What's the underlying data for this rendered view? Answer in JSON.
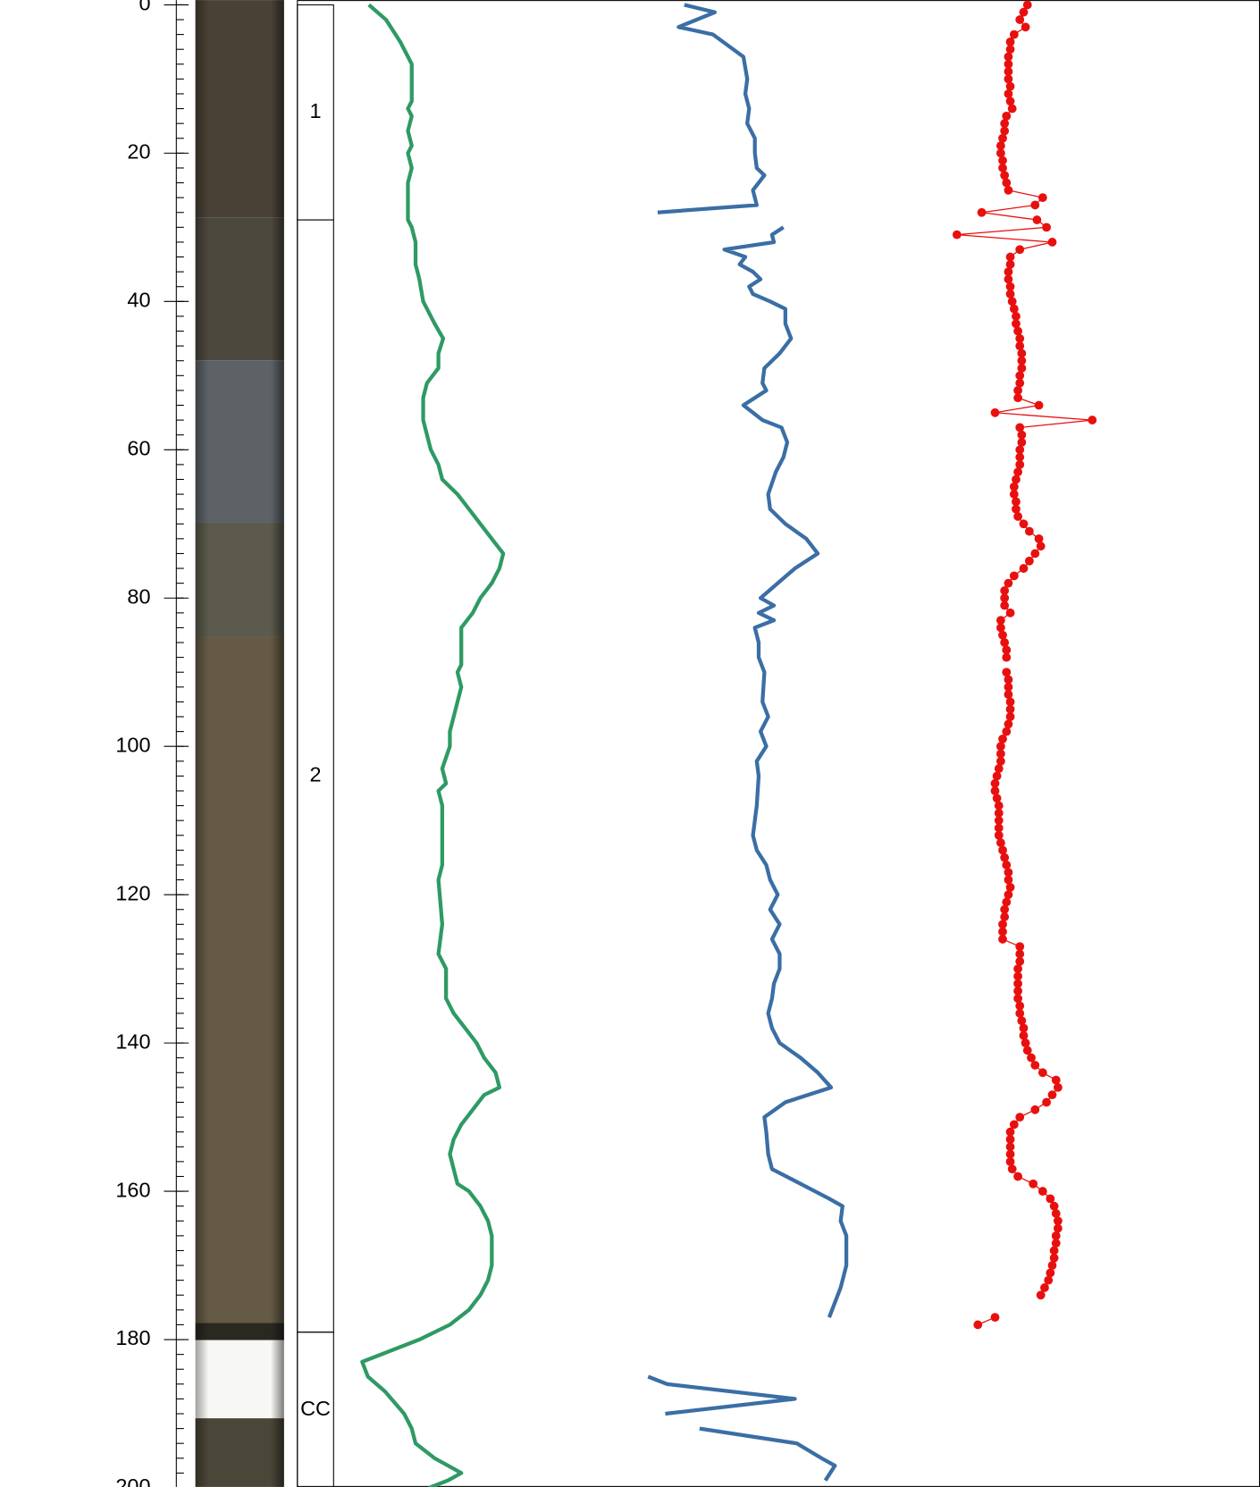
{
  "chart_data": {
    "type": "core-log",
    "ylim": [
      0,
      200
    ],
    "yticks": [
      0,
      20,
      40,
      60,
      80,
      100,
      120,
      140,
      160,
      180,
      200
    ],
    "y_minor_step": 2,
    "sections": {
      "labels": [
        "1",
        "2",
        "CC"
      ],
      "top": [
        0,
        29,
        179
      ],
      "bottom": [
        29,
        179,
        200
      ]
    },
    "tracks": [
      {
        "type": "line",
        "color": "#2e9a64",
        "xlim": [
          0,
          200
        ],
        "depth": [
          0,
          2,
          5,
          8,
          10,
          13,
          14,
          15,
          17,
          19,
          20,
          22,
          24,
          26,
          29,
          30,
          32,
          35,
          37,
          40,
          43,
          45,
          47,
          49,
          51,
          53,
          56,
          58,
          60,
          62,
          64,
          66,
          68,
          70,
          72,
          74,
          76,
          78,
          80,
          82,
          84,
          86,
          89,
          90,
          92,
          94,
          96,
          98,
          100,
          103,
          105,
          106,
          108,
          112,
          116,
          118,
          124,
          128,
          130,
          134,
          136,
          138,
          140,
          142,
          144,
          146,
          147,
          149,
          151,
          153,
          155,
          157,
          159,
          160,
          162,
          164,
          166,
          170,
          172,
          174,
          176,
          178,
          180,
          182,
          183,
          185,
          187,
          190,
          192,
          194,
          196,
          198,
          199,
          200
        ],
        "values": [
          27,
          45,
          60,
          72,
          72,
          72,
          68,
          72,
          68,
          72,
          68,
          72,
          68,
          68,
          68,
          72,
          76,
          76,
          80,
          84,
          96,
          105,
          100,
          100,
          88,
          84,
          84,
          88,
          92,
          100,
          104,
          120,
          132,
          144,
          156,
          168,
          164,
          156,
          144,
          136,
          124,
          124,
          124,
          120,
          124,
          120,
          116,
          112,
          112,
          104,
          108,
          100,
          104,
          104,
          104,
          100,
          104,
          100,
          108,
          108,
          116,
          128,
          140,
          148,
          160,
          164,
          148,
          136,
          124,
          116,
          112,
          116,
          120,
          132,
          144,
          152,
          156,
          156,
          152,
          144,
          132,
          112,
          80,
          40,
          20,
          26,
          44,
          64,
          72,
          76,
          96,
          124,
          110,
          90
        ]
      },
      {
        "type": "line",
        "color": "#3a6ea5",
        "xlim": [
          0,
          250
        ],
        "depth": [
          0,
          1,
          3,
          4,
          7,
          10,
          12,
          14,
          16,
          18,
          20,
          22,
          23,
          25,
          27,
          28,
          29,
          30,
          31,
          32,
          33,
          34,
          35,
          36,
          37,
          38,
          39,
          40,
          41,
          43,
          45,
          47,
          49,
          51,
          52,
          54,
          56,
          57,
          59,
          61,
          63,
          66,
          68,
          70,
          72,
          74,
          76,
          78,
          80,
          81,
          82,
          83,
          84,
          86,
          88,
          90,
          94,
          96,
          98,
          100,
          102,
          104,
          108,
          112,
          114,
          116,
          118,
          120,
          122,
          124,
          126,
          128,
          130,
          132,
          134,
          136,
          138,
          140,
          142,
          144,
          146,
          148,
          150,
          152,
          155,
          157,
          159,
          161,
          162,
          164,
          166,
          170,
          173,
          175,
          177,
          181,
          185,
          186,
          188,
          190,
          191,
          192,
          194,
          196,
          197,
          199
        ],
        "values": [
          58,
          90,
          52,
          88,
          120,
          124,
          122,
          126,
          124,
          132,
          132,
          134,
          142,
          130,
          134,
          30,
          null,
          162,
          150,
          152,
          100,
          122,
          116,
          130,
          138,
          126,
          130,
          148,
          164,
          164,
          170,
          158,
          142,
          140,
          144,
          120,
          140,
          160,
          166,
          162,
          154,
          146,
          148,
          164,
          186,
          198,
          174,
          156,
          138,
          152,
          136,
          152,
          132,
          136,
          136,
          142,
          140,
          146,
          138,
          144,
          134,
          136,
          134,
          130,
          134,
          144,
          148,
          156,
          148,
          158,
          150,
          158,
          158,
          152,
          150,
          146,
          150,
          158,
          180,
          198,
          212,
          164,
          142,
          144,
          146,
          150,
          180,
          210,
          224,
          222,
          228,
          228,
          222,
          216,
          210,
          null,
          20,
          40,
          174,
          38,
          null,
          74,
          176,
          202,
          216,
          206
        ]
      },
      {
        "type": "line-markers",
        "color": "#e8100e",
        "xlim": [
          0,
          200
        ],
        "depth": [
          0,
          1,
          2,
          3,
          4,
          5,
          6,
          7,
          8,
          9,
          10,
          11,
          12,
          13,
          14,
          15,
          16,
          17,
          18,
          19,
          20,
          21,
          22,
          23,
          24,
          25,
          26,
          27,
          28,
          29,
          30,
          31,
          32,
          33,
          34,
          35,
          36,
          37,
          38,
          39,
          40,
          41,
          42,
          43,
          44,
          45,
          46,
          47,
          48,
          49,
          50,
          51,
          52,
          53,
          54,
          55,
          56,
          57,
          58,
          59,
          60,
          61,
          62,
          63,
          64,
          65,
          66,
          67,
          68,
          69,
          70,
          71,
          72,
          73,
          74,
          75,
          76,
          77,
          78,
          79,
          80,
          81,
          82,
          83,
          84,
          85,
          86,
          87,
          88,
          89,
          90,
          91,
          92,
          93,
          94,
          95,
          96,
          97,
          98,
          99,
          100,
          101,
          102,
          103,
          104,
          105,
          106,
          107,
          108,
          109,
          110,
          111,
          112,
          113,
          114,
          115,
          116,
          117,
          118,
          119,
          120,
          121,
          122,
          123,
          124,
          125,
          126,
          127,
          128,
          129,
          130,
          131,
          132,
          133,
          134,
          135,
          136,
          137,
          138,
          139,
          140,
          141,
          142,
          143,
          144,
          145,
          146,
          147,
          148,
          149,
          150,
          151,
          152,
          153,
          154,
          155,
          156,
          157,
          158,
          159,
          160,
          161,
          162,
          163,
          164,
          165,
          166,
          167,
          168,
          169,
          170,
          171,
          172,
          173,
          174,
          175,
          176,
          177,
          178
        ],
        "values": [
          98,
          94,
          90,
          96,
          84,
          80,
          80,
          78,
          78,
          78,
          78,
          80,
          78,
          80,
          82,
          76,
          74,
          74,
          72,
          70,
          70,
          72,
          72,
          74,
          76,
          78,
          114,
          106,
          50,
          108,
          118,
          24,
          124,
          90,
          80,
          80,
          78,
          78,
          80,
          80,
          82,
          84,
          86,
          86,
          88,
          90,
          90,
          92,
          92,
          92,
          90,
          90,
          88,
          88,
          110,
          64,
          166,
          90,
          92,
          92,
          90,
          90,
          90,
          88,
          86,
          84,
          84,
          86,
          86,
          88,
          94,
          100,
          110,
          112,
          106,
          100,
          94,
          84,
          78,
          74,
          74,
          74,
          80,
          70,
          70,
          72,
          74,
          76,
          76,
          null,
          76,
          78,
          78,
          78,
          80,
          80,
          80,
          78,
          76,
          72,
          70,
          70,
          70,
          68,
          66,
          64,
          64,
          66,
          68,
          68,
          68,
          68,
          68,
          70,
          72,
          74,
          76,
          78,
          78,
          80,
          78,
          76,
          74,
          74,
          72,
          72,
          72,
          90,
          90,
          90,
          88,
          88,
          88,
          88,
          88,
          90,
          90,
          92,
          94,
          94,
          96,
          98,
          102,
          106,
          114,
          128,
          130,
          124,
          118,
          106,
          90,
          84,
          80,
          80,
          80,
          80,
          80,
          82,
          88,
          104,
          114,
          122,
          126,
          128,
          130,
          130,
          128,
          128,
          126,
          126,
          124,
          122,
          120,
          116,
          112,
          null,
          null,
          64,
          46
        ]
      }
    ]
  }
}
